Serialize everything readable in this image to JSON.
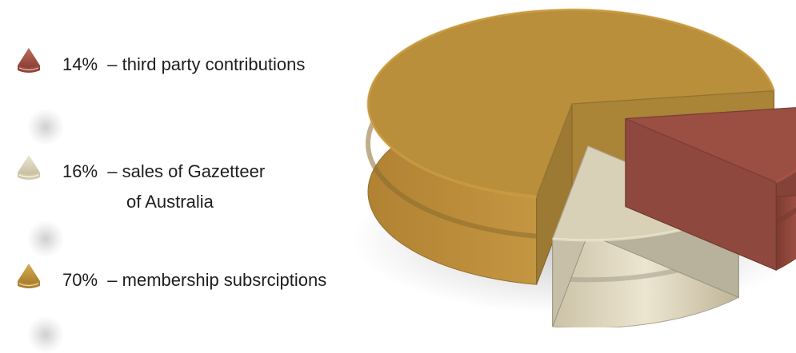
{
  "chart_data": {
    "type": "pie",
    "labels": [
      "third party contributions",
      "sales of Gazetteer of Australia",
      "membership subsrciptions"
    ],
    "values": [
      14,
      16,
      70
    ],
    "colors": [
      "#9b4e42",
      "#d9d0b8",
      "#b98f3c"
    ],
    "legend_position": "left",
    "style": "3d-exploded"
  },
  "legend": {
    "items": [
      {
        "pct": "14%",
        "sep": "–",
        "text": "third party contributions",
        "text2": ""
      },
      {
        "pct": "16%",
        "sep": "–",
        "text": "sales of Gazetteer",
        "text2": "of Australia"
      },
      {
        "pct": "70%",
        "sep": "–",
        "text": "membership subsrciptions",
        "text2": ""
      }
    ]
  }
}
